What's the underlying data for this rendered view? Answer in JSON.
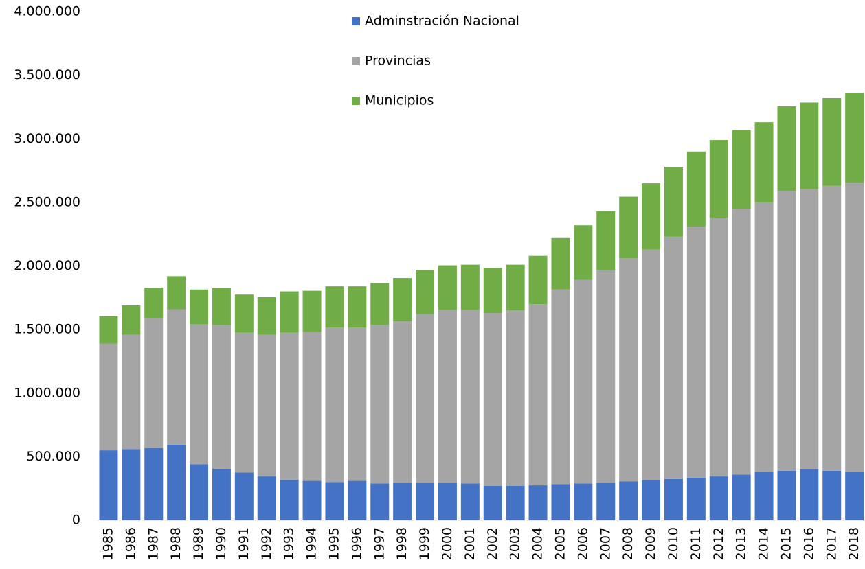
{
  "chart_data": {
    "type": "stacked_bar",
    "categories": [
      "1985",
      "1986",
      "1987",
      "1988",
      "1989",
      "1990",
      "1991",
      "1992",
      "1993",
      "1994",
      "1995",
      "1996",
      "1997",
      "1998",
      "1999",
      "2000",
      "2001",
      "2002",
      "2003",
      "2004",
      "2005",
      "2006",
      "2007",
      "2008",
      "2009",
      "2010",
      "2011",
      "2012",
      "2013",
      "2014",
      "2015",
      "2016",
      "2017",
      "2018"
    ],
    "series": [
      {
        "name": "Adminstración Nacional",
        "color": "#4472c4",
        "values": [
          550000,
          560000,
          570000,
          595000,
          440000,
          405000,
          375000,
          345000,
          320000,
          310000,
          300000,
          310000,
          290000,
          295000,
          295000,
          295000,
          290000,
          270000,
          270000,
          275000,
          285000,
          290000,
          295000,
          305000,
          315000,
          325000,
          335000,
          345000,
          360000,
          380000,
          390000,
          400000,
          390000,
          380000
        ]
      },
      {
        "name": "Provincias",
        "color": "#a5a5a5",
        "values": [
          840000,
          900000,
          1020000,
          1065000,
          1100000,
          1130000,
          1100000,
          1115000,
          1155000,
          1170000,
          1215000,
          1205000,
          1245000,
          1270000,
          1325000,
          1360000,
          1365000,
          1360000,
          1380000,
          1425000,
          1530000,
          1600000,
          1675000,
          1755000,
          1815000,
          1905000,
          1975000,
          2035000,
          2090000,
          2120000,
          2200000,
          2205000,
          2240000,
          2275000
        ]
      },
      {
        "name": "Municipios",
        "color": "#70ad47",
        "values": [
          215000,
          230000,
          240000,
          260000,
          275000,
          290000,
          300000,
          295000,
          325000,
          325000,
          325000,
          325000,
          330000,
          340000,
          350000,
          350000,
          355000,
          355000,
          360000,
          380000,
          405000,
          430000,
          460000,
          485000,
          520000,
          550000,
          590000,
          610000,
          620000,
          630000,
          665000,
          680000,
          690000,
          705000
        ]
      }
    ],
    "ylim": [
      0,
      4000000
    ],
    "yticks": [
      0,
      {
        "value": 500000,
        "label": "500.000"
      },
      {
        "value": 1000000,
        "label": "1.000.000"
      },
      {
        "value": 1500000,
        "label": "1.500.000"
      },
      {
        "value": 2000000,
        "label": "2.000.000"
      },
      {
        "value": 2500000,
        "label": "2.500.000"
      },
      {
        "value": 3000000,
        "label": "3.000.000"
      },
      {
        "value": 3500000,
        "label": "3.500.000"
      },
      {
        "value": 4000000,
        "label": "4.000.000"
      }
    ],
    "legend": "top"
  }
}
